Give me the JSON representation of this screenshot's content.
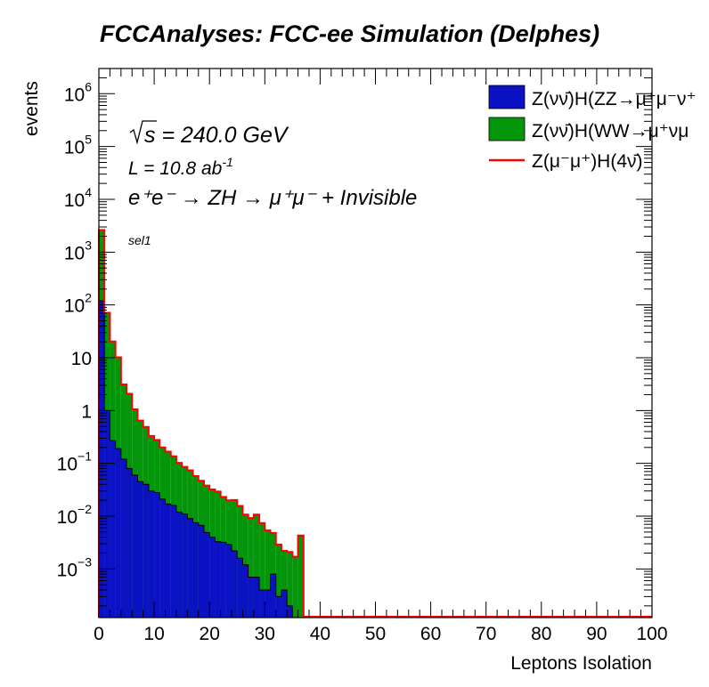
{
  "chart_data": {
    "type": "histogram",
    "stacked": true,
    "title": "FCCAnalyses: FCC-ee Simulation (Delphes)",
    "xlabel": "Leptons Isolation",
    "ylabel": "events",
    "xlim": [
      0,
      100
    ],
    "ylim": [
      0.00012,
      3000000
    ],
    "log_y": true,
    "grid": false,
    "legend_position": "top-right",
    "x_ticks": [
      "0",
      "10",
      "20",
      "30",
      "40",
      "50",
      "60",
      "70",
      "80",
      "90",
      "100"
    ],
    "y_ticks": [
      {
        "base": "10",
        "exp": "6",
        "value": 1000000
      },
      {
        "base": "10",
        "exp": "5",
        "value": 100000
      },
      {
        "base": "10",
        "exp": "4",
        "value": 10000
      },
      {
        "base": "10",
        "exp": "3",
        "value": 1000
      },
      {
        "base": "10",
        "exp": "2",
        "value": 100
      },
      {
        "base": "10",
        "exp": "",
        "value": 10
      },
      {
        "base": "1",
        "exp": "",
        "value": 1
      },
      {
        "base": "10",
        "exp": "−1",
        "value": 0.1
      },
      {
        "base": "10",
        "exp": "−2",
        "value": 0.01
      },
      {
        "base": "10",
        "exp": "−3",
        "value": 0.001
      }
    ],
    "bin_edges_start": 0,
    "bin_width": 1,
    "n_bins": 100,
    "series": [
      {
        "name": "Z(νν̄)H(ZZ→μ⁺μ⁻ν⁺ν⁻)",
        "legend_label": "Z(νν̄)H(ZZ→μ⁺μ⁻ν⁺",
        "style": "fill",
        "color": "#0a12c4",
        "values": [
          120,
          1.0,
          0.27,
          0.19,
          0.12,
          0.08,
          0.06,
          0.045,
          0.04,
          0.03,
          0.028,
          0.021,
          0.017,
          0.016,
          0.012,
          0.011,
          0.009,
          0.0075,
          0.0067,
          0.0049,
          0.004,
          0.0033,
          0.0032,
          0.0029,
          0.0022,
          0.0016,
          0.0012,
          0.0007,
          0.0007,
          0.0004,
          0.0004,
          0.0008,
          0.0003,
          0.0004,
          0.0002,
          0.0001,
          0.0001
        ]
      },
      {
        "name": "Z(νν̄)H(WW→μ⁺νμ⁻ν)",
        "legend_label": "Z(νν̄)H(WW→μ⁺νμ",
        "style": "fill",
        "color": "#03960a",
        "values": [
          2500,
          70,
          20,
          10,
          3.0,
          2.0,
          1.0,
          0.6,
          0.45,
          0.3,
          0.25,
          0.18,
          0.15,
          0.12,
          0.09,
          0.075,
          0.065,
          0.05,
          0.04,
          0.033,
          0.028,
          0.026,
          0.02,
          0.017,
          0.018,
          0.014,
          0.0095,
          0.0085,
          0.01,
          0.007,
          0.005,
          0.004,
          0.0026,
          0.0018,
          0.0019,
          0.0016,
          0.0042
        ]
      },
      {
        "name": "Z(μ⁻μ⁺)H(4ν)",
        "legend_label": "Z(μ⁻μ⁺)H(4ν̄)",
        "style": "line",
        "color": "#ff0000",
        "values": []
      }
    ]
  },
  "annotations": {
    "sqrt_s": "s = 240.0 GeV",
    "lumi_prefix": "L = 10.8 ab",
    "lumi_exp": "-1",
    "process": "e⁺e⁻ → ZH → μ⁺μ⁻ + Invisible",
    "selection": "sel1"
  }
}
